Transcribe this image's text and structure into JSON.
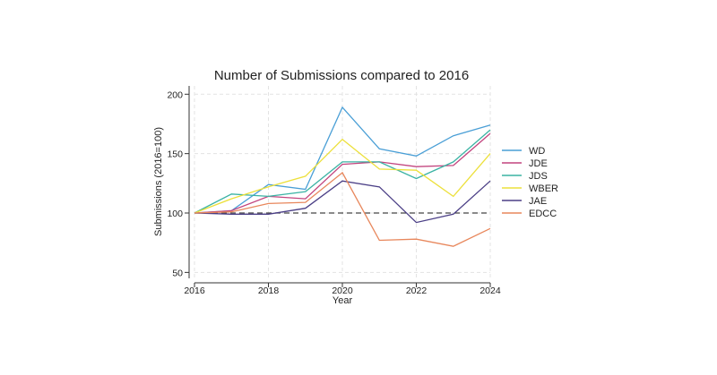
{
  "chart_data": {
    "type": "line",
    "title": "Number of Submissions compared to 2016",
    "xlabel": "Year",
    "ylabel": "Submissions (2016=100)",
    "x": [
      2016,
      2017,
      2018,
      2019,
      2020,
      2021,
      2022,
      2023,
      2024
    ],
    "xticks": [
      2016,
      2018,
      2020,
      2022,
      2024
    ],
    "yticks": [
      50,
      100,
      150,
      200
    ],
    "xlim": [
      2016,
      2024
    ],
    "ylim": [
      45,
      207
    ],
    "grid": true,
    "legend_position": "right",
    "reference_line": {
      "y": 100,
      "style": "dashed"
    },
    "series": [
      {
        "name": "WD",
        "color": "#4a9fd6",
        "values": [
          100,
          102,
          124,
          120,
          189,
          154,
          148,
          165,
          174
        ]
      },
      {
        "name": "JDE",
        "color": "#c2447e",
        "values": [
          100,
          102,
          114,
          112,
          141,
          143,
          139,
          140,
          167
        ]
      },
      {
        "name": "JDS",
        "color": "#3bb3a4",
        "values": [
          100,
          116,
          114,
          118,
          143,
          143,
          129,
          143,
          170
        ]
      },
      {
        "name": "WBER",
        "color": "#ece03b",
        "values": [
          100,
          112,
          122,
          131,
          162,
          137,
          136,
          114,
          150
        ]
      },
      {
        "name": "JAE",
        "color": "#4b3f86",
        "values": [
          100,
          99,
          99,
          104,
          127,
          122,
          92,
          99,
          127
        ]
      },
      {
        "name": "EDCC",
        "color": "#e8875c",
        "values": [
          100,
          101,
          108,
          109,
          134,
          77,
          78,
          72,
          87
        ]
      }
    ]
  }
}
